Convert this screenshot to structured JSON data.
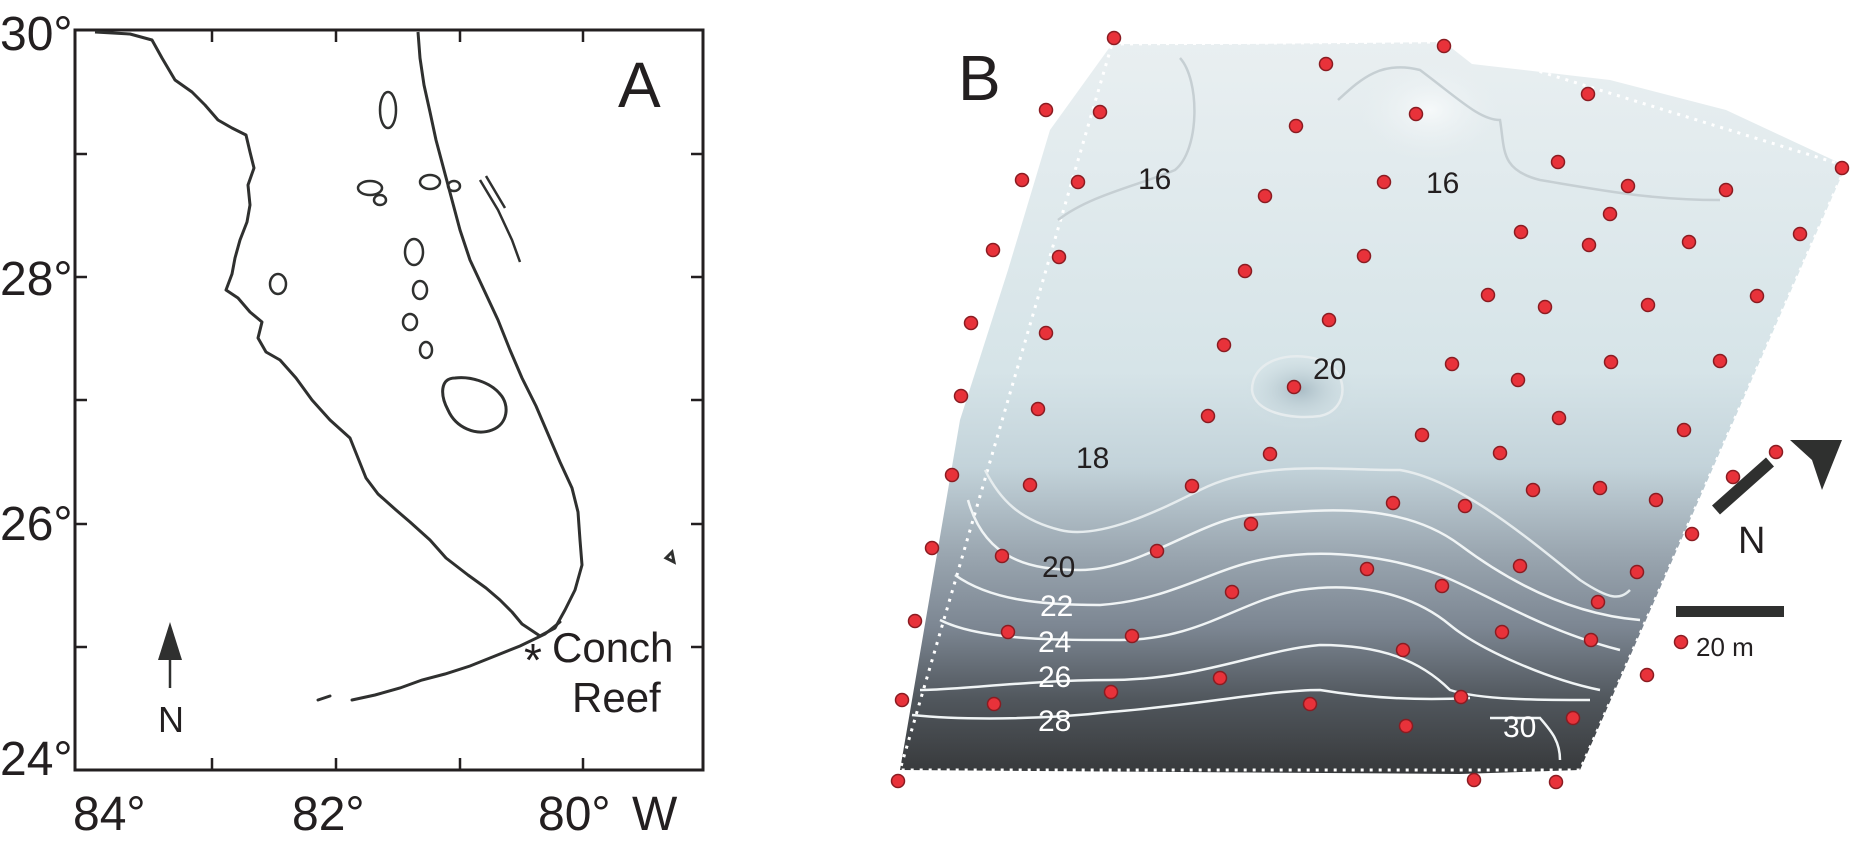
{
  "panel_a": {
    "letter": "A",
    "lat_labels": [
      "30°",
      "28°",
      "26°",
      "24°"
    ],
    "lon_labels": [
      "84°",
      "82°",
      "80°"
    ],
    "lon_unit": "W",
    "north_label": "N",
    "site_marker": "*",
    "site_name_line1": "Conch",
    "site_name_line2": "Reef"
  },
  "panel_b": {
    "letter": "B",
    "contour_labels": [
      "16",
      "16",
      "20",
      "18",
      "20",
      "22",
      "24",
      "26",
      "28",
      "30"
    ],
    "north_label": "N",
    "scale_label": "20 m",
    "colors": {
      "shallow": "#e8eef0",
      "deep": "#3a3d3f",
      "station": "#e8323a",
      "station_edge": "#8a1c22",
      "coast": "#2f302f"
    }
  }
}
